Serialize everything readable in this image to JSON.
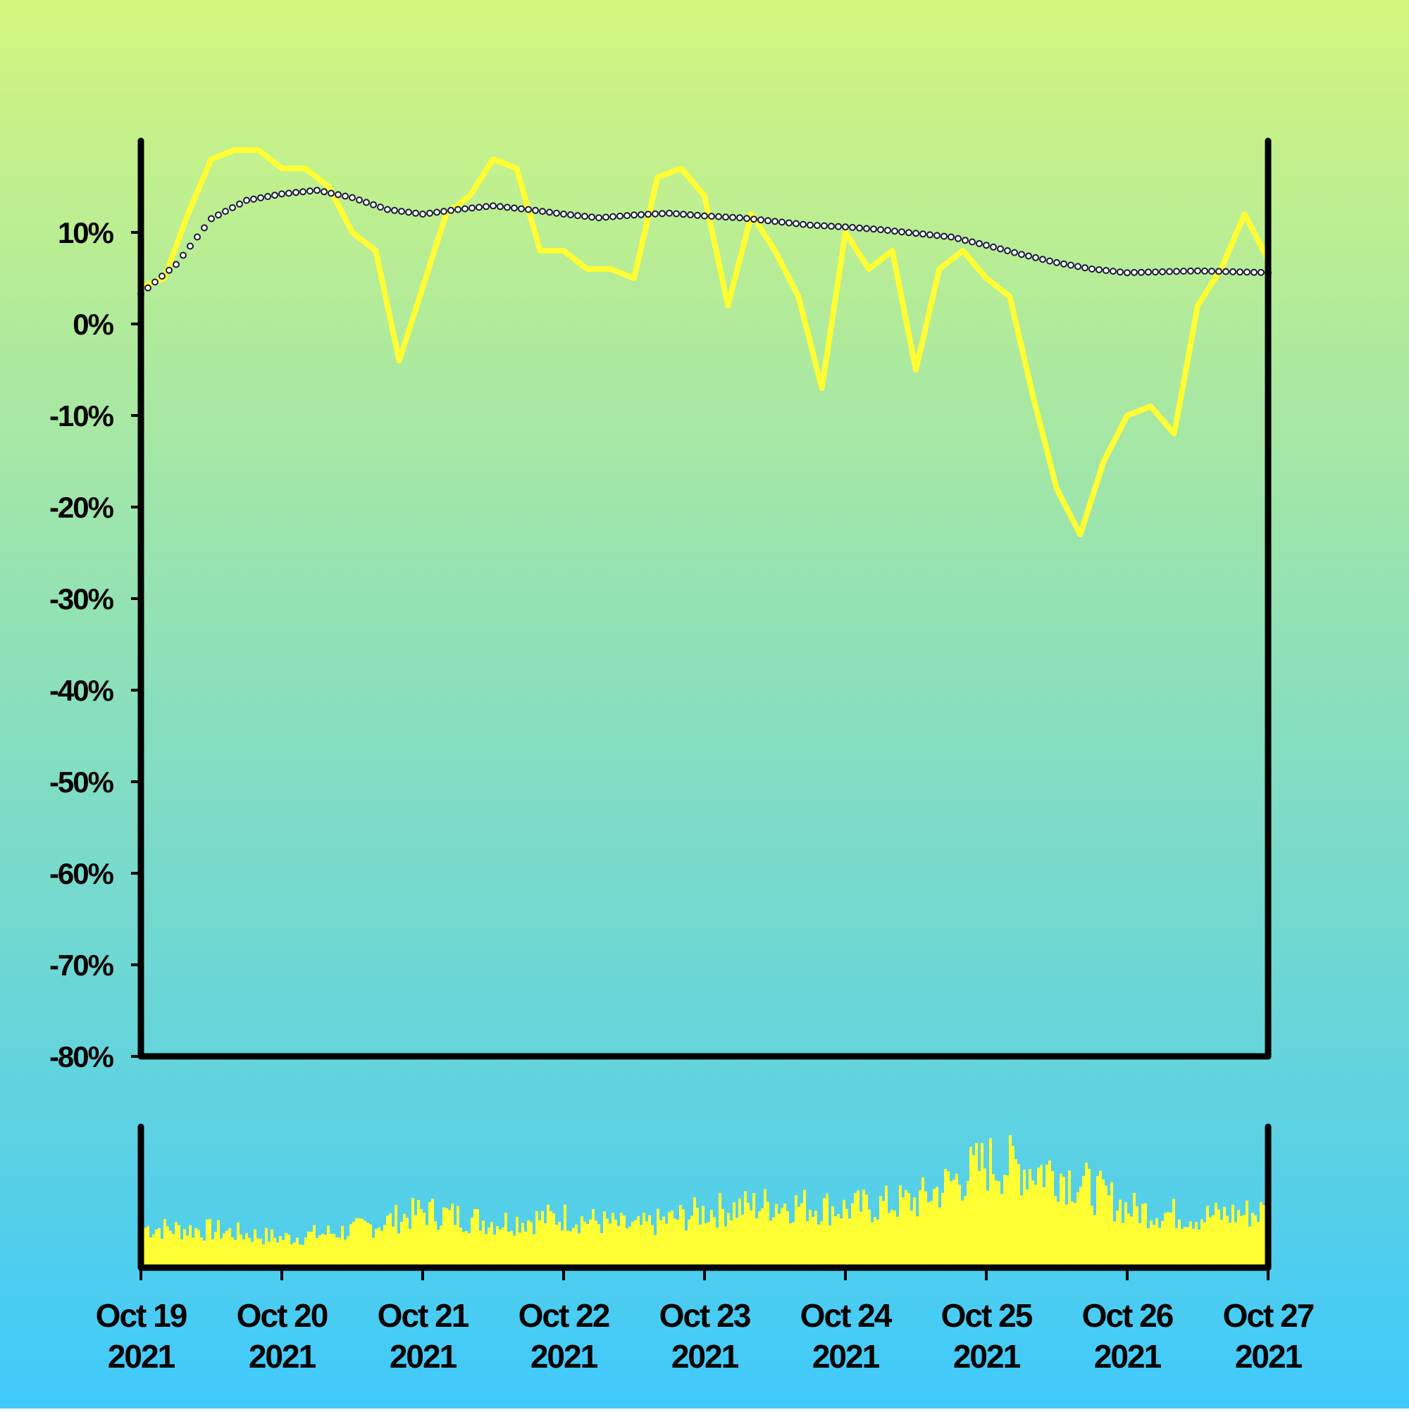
{
  "colors": {
    "background_top": "#d3f57e",
    "background_bottom": "#3fc9fb",
    "price_line": "#ffff33",
    "moving_average_stroke": "#1a1a3a",
    "moving_average_fill": "#ffffff",
    "volume_bars": "#ffff33",
    "axes": "#000000"
  },
  "chart_data": [
    {
      "type": "line",
      "panel": "main",
      "ylim": [
        -80,
        20
      ],
      "xlim": [
        "2021-10-19",
        "2021-10-27"
      ],
      "y_ticks": [
        10,
        0,
        -10,
        -20,
        -30,
        -40,
        -50,
        -60,
        -70,
        -80
      ],
      "y_tick_labels": [
        "10%",
        "0%",
        "-10%",
        "-20%",
        "-30%",
        "-40%",
        "-50%",
        "-60%",
        "-70%",
        "-80%"
      ],
      "grid": false,
      "series": [
        {
          "style": "solid line",
          "x": [
            "2021-10-19 00:00",
            "2021-10-19 04:00",
            "2021-10-19 08:00",
            "2021-10-19 12:00",
            "2021-10-19 16:00",
            "2021-10-19 20:00",
            "2021-10-20 00:00",
            "2021-10-20 04:00",
            "2021-10-20 08:00",
            "2021-10-20 12:00",
            "2021-10-20 16:00",
            "2021-10-20 20:00",
            "2021-10-21 00:00",
            "2021-10-21 04:00",
            "2021-10-21 08:00",
            "2021-10-21 12:00",
            "2021-10-21 16:00",
            "2021-10-21 20:00",
            "2021-10-22 00:00",
            "2021-10-22 04:00",
            "2021-10-22 08:00",
            "2021-10-22 12:00",
            "2021-10-22 16:00",
            "2021-10-22 20:00",
            "2021-10-23 00:00",
            "2021-10-23 04:00",
            "2021-10-23 08:00",
            "2021-10-23 12:00",
            "2021-10-23 16:00",
            "2021-10-23 20:00",
            "2021-10-24 00:00",
            "2021-10-24 04:00",
            "2021-10-24 08:00",
            "2021-10-24 12:00",
            "2021-10-24 16:00",
            "2021-10-24 20:00",
            "2021-10-25 00:00",
            "2021-10-25 04:00",
            "2021-10-25 08:00",
            "2021-10-25 12:00",
            "2021-10-25 16:00",
            "2021-10-25 20:00",
            "2021-10-26 00:00",
            "2021-10-26 04:00",
            "2021-10-26 08:00",
            "2021-10-26 12:00",
            "2021-10-26 16:00",
            "2021-10-26 20:00",
            "2021-10-27 00:00"
          ],
          "values": [
            4,
            5,
            12,
            18,
            19,
            19,
            17,
            17,
            15,
            10,
            8,
            -4,
            4,
            12,
            14,
            18,
            17,
            8,
            8,
            6,
            6,
            5,
            16,
            17,
            14,
            2,
            12,
            8,
            3,
            -7,
            10,
            6,
            8,
            -5,
            6,
            8,
            5,
            3,
            -8,
            -18,
            -23,
            -15,
            -10,
            -9,
            -12,
            2,
            6,
            12,
            7
          ]
        },
        {
          "style": "dotted moving average",
          "x": [
            "2021-10-19 00:00",
            "2021-10-19 06:00",
            "2021-10-19 12:00",
            "2021-10-19 18:00",
            "2021-10-20 00:00",
            "2021-10-20 06:00",
            "2021-10-20 12:00",
            "2021-10-20 18:00",
            "2021-10-21 00:00",
            "2021-10-21 06:00",
            "2021-10-21 12:00",
            "2021-10-21 18:00",
            "2021-10-22 00:00",
            "2021-10-22 06:00",
            "2021-10-22 12:00",
            "2021-10-22 18:00",
            "2021-10-23 00:00",
            "2021-10-23 06:00",
            "2021-10-23 12:00",
            "2021-10-23 18:00",
            "2021-10-24 00:00",
            "2021-10-24 06:00",
            "2021-10-24 12:00",
            "2021-10-24 18:00",
            "2021-10-25 00:00",
            "2021-10-25 06:00",
            "2021-10-25 12:00",
            "2021-10-25 18:00",
            "2021-10-26 00:00",
            "2021-10-26 06:00",
            "2021-10-26 12:00",
            "2021-10-26 18:00",
            "2021-10-27 00:00"
          ],
          "values": [
            3.3,
            6.5,
            11.5,
            13.5,
            14.2,
            14.6,
            13.8,
            12.5,
            12.0,
            12.5,
            12.9,
            12.5,
            12.0,
            11.6,
            11.9,
            12.1,
            11.8,
            11.6,
            11.2,
            10.8,
            10.6,
            10.3,
            9.9,
            9.5,
            8.6,
            7.6,
            6.7,
            6.0,
            5.6,
            5.7,
            5.8,
            5.7,
            5.6
          ]
        }
      ]
    },
    {
      "type": "bar",
      "panel": "volume",
      "description_values": "relative volume, 0-100",
      "x": [
        "2021-10-19",
        "2021-10-19 12:00",
        "2021-10-20",
        "2021-10-20 12:00",
        "2021-10-21",
        "2021-10-21 12:00",
        "2021-10-22",
        "2021-10-22 12:00",
        "2021-10-23",
        "2021-10-23 12:00",
        "2021-10-24",
        "2021-10-24 12:00",
        "2021-10-25",
        "2021-10-25 12:00",
        "2021-10-26",
        "2021-10-26 12:00",
        "2021-10-27"
      ],
      "values": [
        30,
        28,
        22,
        28,
        42,
        34,
        38,
        30,
        42,
        48,
        44,
        50,
        78,
        72,
        44,
        38,
        42
      ]
    }
  ],
  "x_tick_labels": [
    {
      "month_day": "Oct 19",
      "year": "2021"
    },
    {
      "month_day": "Oct 20",
      "year": "2021"
    },
    {
      "month_day": "Oct 21",
      "year": "2021"
    },
    {
      "month_day": "Oct 22",
      "year": "2021"
    },
    {
      "month_day": "Oct 23",
      "year": "2021"
    },
    {
      "month_day": "Oct 24",
      "year": "2021"
    },
    {
      "month_day": "Oct 25",
      "year": "2021"
    },
    {
      "month_day": "Oct 26",
      "year": "2021"
    },
    {
      "month_day": "Oct 27",
      "year": "2021"
    }
  ]
}
